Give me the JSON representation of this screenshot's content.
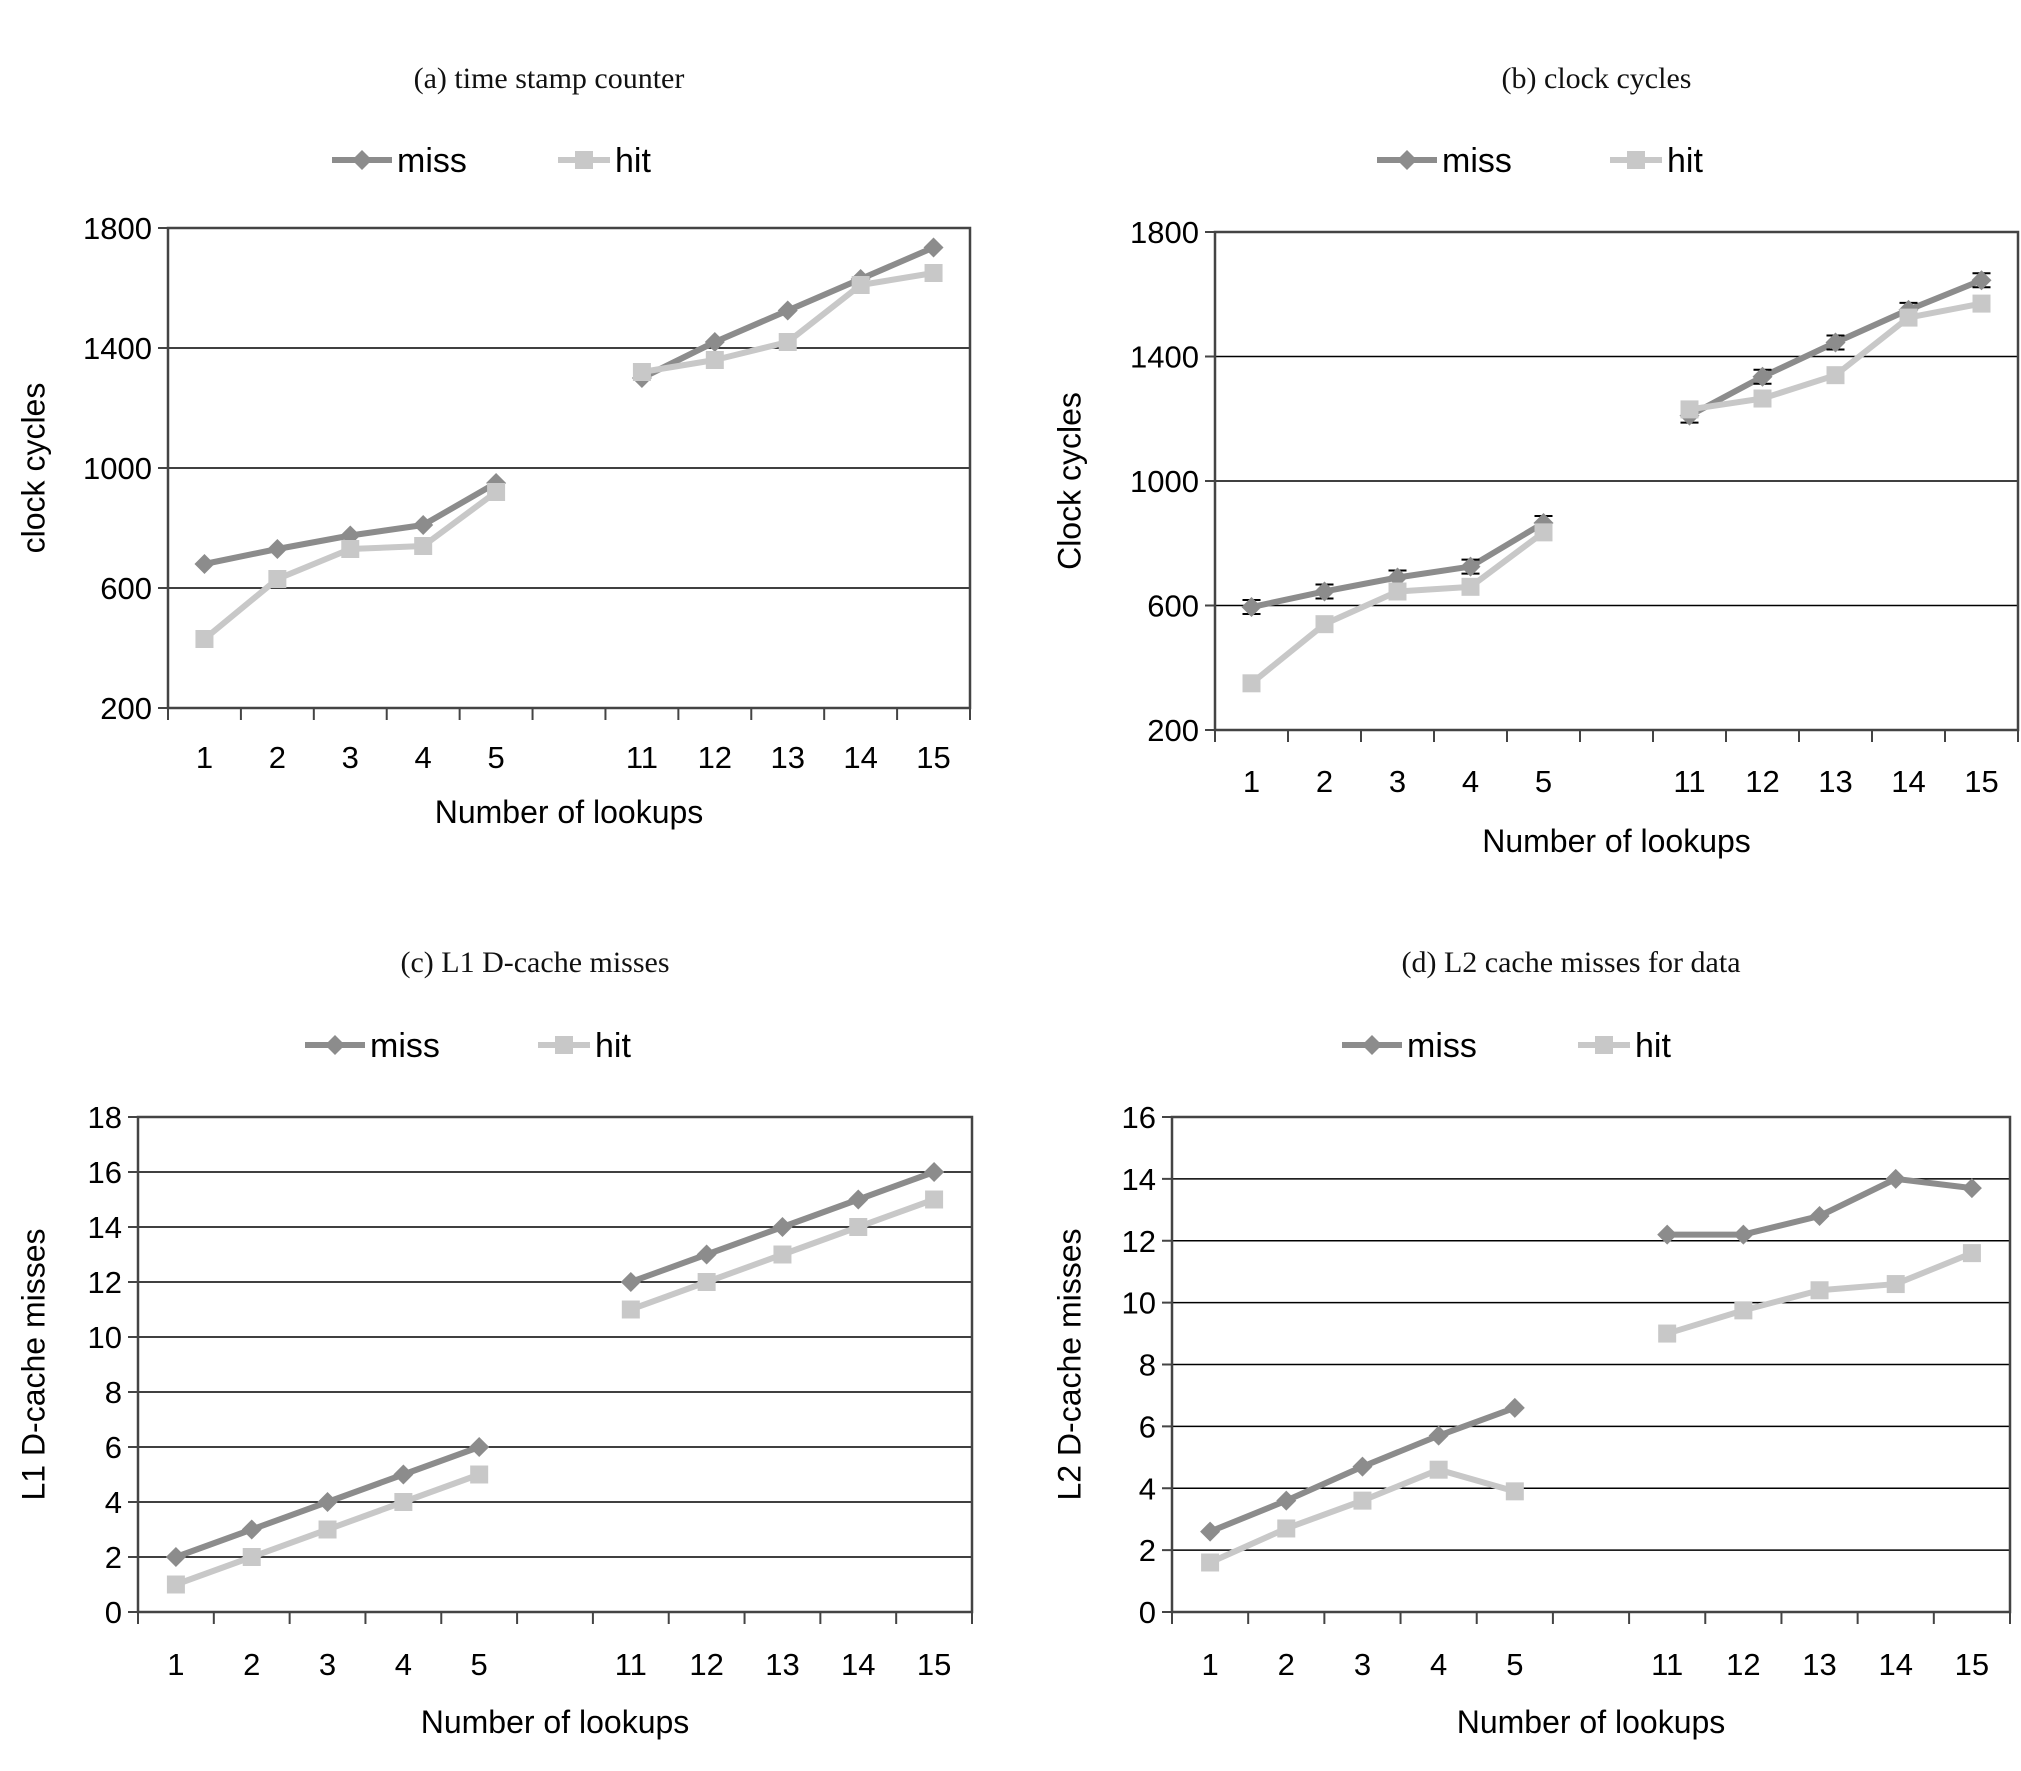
{
  "colors": {
    "miss": "#8c8c8c",
    "hit": "#c8c8c8",
    "grid": "#000000",
    "axis": "#444444"
  },
  "chart_data": [
    {
      "type": "line",
      "title": "(a) time stamp counter",
      "xlabel": "Number of lookups",
      "ylabel": "clock cycles",
      "categories": [
        "1",
        "2",
        "3",
        "4",
        "5",
        "11",
        "12",
        "13",
        "14",
        "15"
      ],
      "ylim": [
        200,
        1800
      ],
      "yticks": [
        "200",
        "600",
        "1000",
        "1400",
        "1800"
      ],
      "ytick_values": [
        200,
        600,
        1000,
        1400,
        1800
      ],
      "grid": true,
      "legend": {
        "position": "top-center",
        "entries": [
          "miss",
          "hit"
        ]
      },
      "series": [
        {
          "name": "miss",
          "marker": "diamond",
          "values": [
            680,
            730,
            775,
            810,
            950,
            1300,
            1420,
            1525,
            1630,
            1735
          ]
        },
        {
          "name": "hit",
          "marker": "square",
          "values": [
            430,
            630,
            730,
            740,
            920,
            1320,
            1360,
            1420,
            1610,
            1650
          ]
        }
      ]
    },
    {
      "type": "line",
      "title": "(b) clock cycles",
      "xlabel": "Number of lookups",
      "ylabel": "Clock cycles",
      "categories": [
        "1",
        "2",
        "3",
        "4",
        "5",
        "11",
        "12",
        "13",
        "14",
        "15"
      ],
      "ylim": [
        200,
        1800
      ],
      "yticks": [
        "200",
        "600",
        "1000",
        "1400",
        "1800"
      ],
      "ytick_values": [
        200,
        600,
        1000,
        1400,
        1800
      ],
      "grid": true,
      "legend": {
        "position": "top-center",
        "entries": [
          "miss",
          "hit"
        ]
      },
      "error_bars": true,
      "series": [
        {
          "name": "miss",
          "marker": "diamond",
          "values": [
            595,
            645,
            690,
            725,
            865,
            1210,
            1335,
            1445,
            1550,
            1645
          ]
        },
        {
          "name": "hit",
          "marker": "square",
          "values": [
            350,
            540,
            645,
            660,
            835,
            1230,
            1265,
            1340,
            1525,
            1570
          ]
        }
      ]
    },
    {
      "type": "line",
      "title": "(c) L1 D-cache misses",
      "xlabel": "Number of lookups",
      "ylabel": "L1 D-cache misses",
      "categories": [
        "1",
        "2",
        "3",
        "4",
        "5",
        "11",
        "12",
        "13",
        "14",
        "15"
      ],
      "ylim": [
        0,
        18
      ],
      "yticks": [
        "0",
        "2",
        "4",
        "6",
        "8",
        "10",
        "12",
        "14",
        "16",
        "18"
      ],
      "ytick_values": [
        0,
        2,
        4,
        6,
        8,
        10,
        12,
        14,
        16,
        18
      ],
      "grid": true,
      "legend": {
        "position": "top-center",
        "entries": [
          "miss",
          "hit"
        ]
      },
      "series": [
        {
          "name": "miss",
          "marker": "diamond",
          "values": [
            2,
            3,
            4,
            5,
            6,
            12,
            13,
            14,
            15,
            16
          ]
        },
        {
          "name": "hit",
          "marker": "square",
          "values": [
            1,
            2,
            3,
            4,
            5,
            11,
            12,
            13,
            14,
            15
          ]
        }
      ]
    },
    {
      "type": "line",
      "title": "(d) L2 cache misses for data",
      "xlabel": "Number of lookups",
      "ylabel": "L2 D-cache misses",
      "categories": [
        "1",
        "2",
        "3",
        "4",
        "5",
        "11",
        "12",
        "13",
        "14",
        "15"
      ],
      "ylim": [
        0,
        16
      ],
      "yticks": [
        "0",
        "2",
        "4",
        "6",
        "8",
        "10",
        "12",
        "14",
        "16"
      ],
      "ytick_values": [
        0,
        2,
        4,
        6,
        8,
        10,
        12,
        14,
        16
      ],
      "grid": true,
      "legend": {
        "position": "top-center",
        "entries": [
          "miss",
          "hit"
        ]
      },
      "series": [
        {
          "name": "miss",
          "marker": "diamond",
          "values": [
            2.6,
            3.6,
            4.7,
            5.7,
            6.6,
            12.2,
            12.2,
            12.8,
            14.0,
            13.7
          ]
        },
        {
          "name": "hit",
          "marker": "square",
          "values": [
            1.6,
            2.7,
            3.6,
            4.6,
            3.9,
            9.0,
            9.75,
            10.4,
            10.6,
            11.6
          ]
        }
      ]
    }
  ]
}
